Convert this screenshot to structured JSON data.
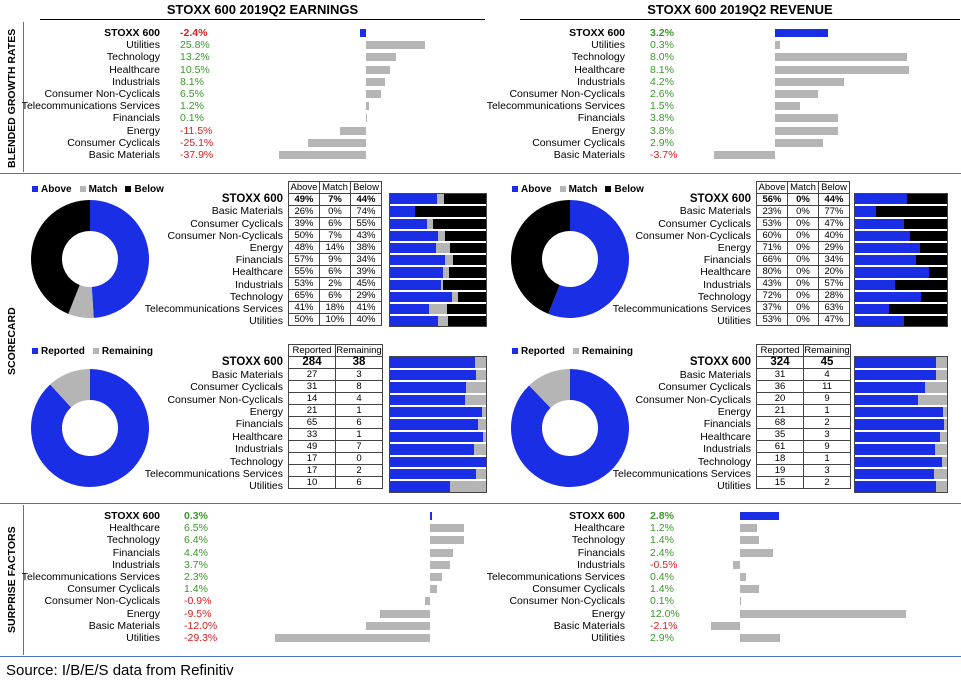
{
  "headers": {
    "earnings": "STOXX 600 2019Q2 EARNINGS",
    "revenue": "STOXX 600 2019Q2 REVENUE"
  },
  "section_labels": {
    "growth": "BLENDED GROWTH RATES",
    "scorecard": "SCORECARD",
    "surprise": "SURPRISE FACTORS"
  },
  "colors": {
    "blue": "#1a2ee6",
    "gray": "#b5b5b5",
    "black": "#000000",
    "pos": "#3a9a2a",
    "neg": "#d92020",
    "rule": "#4a6fd1"
  },
  "source": "Source: I/B/E/S data from Refinitiv",
  "chart_data": [
    {
      "type": "bar",
      "id": "earnings_growth",
      "title": "STOXX 600 2019Q2 EARNINGS",
      "categories": [
        "STOXX 600",
        "Utilities",
        "Technology",
        "Healthcare",
        "Industrials",
        "Consumer Non-Cyclicals",
        "Telecommunications Services",
        "Financials",
        "Energy",
        "Consumer Cyclicals",
        "Basic Materials"
      ],
      "labels": [
        "-2.4%",
        "25.8%",
        "13.2%",
        "10.5%",
        "8.1%",
        "6.5%",
        "1.2%",
        "0.1%",
        "-11.5%",
        "-25.1%",
        "-37.9%"
      ],
      "values": [
        -2.4,
        25.8,
        13.2,
        10.5,
        8.1,
        6.5,
        1.2,
        0.1,
        -11.5,
        -25.1,
        -37.9
      ]
    },
    {
      "type": "bar",
      "id": "revenue_growth",
      "title": "STOXX 600 2019Q2 REVENUE",
      "categories": [
        "STOXX 600",
        "Utilities",
        "Technology",
        "Healthcare",
        "Industrials",
        "Consumer Non-Cyclicals",
        "Telecommunications Services",
        "Financials",
        "Energy",
        "Consumer Cyclicals",
        "Basic Materials"
      ],
      "labels": [
        "3.2%",
        "0.3%",
        "8.0%",
        "8.1%",
        "4.2%",
        "2.6%",
        "1.5%",
        "3.8%",
        "3.8%",
        "2.9%",
        "-3.7%"
      ],
      "values": [
        3.2,
        0.3,
        8.0,
        8.1,
        4.2,
        2.6,
        1.5,
        3.8,
        3.8,
        2.9,
        -3.7
      ]
    },
    {
      "type": "table",
      "id": "earnings_scorecard",
      "legend": [
        "Above",
        "Match",
        "Below"
      ],
      "columns": [
        "Above",
        "Match",
        "Below"
      ],
      "pie": [
        49,
        7,
        44
      ],
      "categories": [
        "STOXX 600",
        "Basic Materials",
        "Consumer Cyclicals",
        "Consumer Non-Cyclicals",
        "Energy",
        "Financials",
        "Healthcare",
        "Industrials",
        "Technology",
        "Telecommunications Services",
        "Utilities"
      ],
      "rows": [
        [
          "49%",
          "7%",
          "44%"
        ],
        [
          "26%",
          "0%",
          "74%"
        ],
        [
          "39%",
          "6%",
          "55%"
        ],
        [
          "50%",
          "7%",
          "43%"
        ],
        [
          "48%",
          "14%",
          "38%"
        ],
        [
          "57%",
          "9%",
          "34%"
        ],
        [
          "55%",
          "6%",
          "39%"
        ],
        [
          "53%",
          "2%",
          "45%"
        ],
        [
          "65%",
          "6%",
          "29%"
        ],
        [
          "41%",
          "18%",
          "41%"
        ],
        [
          "50%",
          "10%",
          "40%"
        ]
      ],
      "values": [
        [
          49,
          7,
          44
        ],
        [
          26,
          0,
          74
        ],
        [
          39,
          6,
          55
        ],
        [
          50,
          7,
          43
        ],
        [
          48,
          14,
          38
        ],
        [
          57,
          9,
          34
        ],
        [
          55,
          6,
          39
        ],
        [
          53,
          2,
          45
        ],
        [
          65,
          6,
          29
        ],
        [
          41,
          18,
          41
        ],
        [
          50,
          10,
          40
        ]
      ]
    },
    {
      "type": "table",
      "id": "revenue_scorecard",
      "legend": [
        "Above",
        "Match",
        "Below"
      ],
      "columns": [
        "Above",
        "Match",
        "Below"
      ],
      "pie": [
        56,
        0,
        44
      ],
      "categories": [
        "STOXX 600",
        "Basic Materials",
        "Consumer Cyclicals",
        "Consumer Non-Cyclicals",
        "Energy",
        "Financials",
        "Healthcare",
        "Industrials",
        "Technology",
        "Telecommunications Services",
        "Utilities"
      ],
      "rows": [
        [
          "56%",
          "0%",
          "44%"
        ],
        [
          "23%",
          "0%",
          "77%"
        ],
        [
          "53%",
          "0%",
          "47%"
        ],
        [
          "60%",
          "0%",
          "40%"
        ],
        [
          "71%",
          "0%",
          "29%"
        ],
        [
          "66%",
          "0%",
          "34%"
        ],
        [
          "80%",
          "0%",
          "20%"
        ],
        [
          "43%",
          "0%",
          "57%"
        ],
        [
          "72%",
          "0%",
          "28%"
        ],
        [
          "37%",
          "0%",
          "63%"
        ],
        [
          "53%",
          "0%",
          "47%"
        ]
      ],
      "values": [
        [
          56,
          0,
          44
        ],
        [
          23,
          0,
          77
        ],
        [
          53,
          0,
          47
        ],
        [
          60,
          0,
          40
        ],
        [
          71,
          0,
          29
        ],
        [
          66,
          0,
          34
        ],
        [
          80,
          0,
          20
        ],
        [
          43,
          0,
          57
        ],
        [
          72,
          0,
          28
        ],
        [
          37,
          0,
          63
        ],
        [
          53,
          0,
          47
        ]
      ]
    },
    {
      "type": "table",
      "id": "earnings_reported",
      "legend": [
        "Reported",
        "Remaining"
      ],
      "columns": [
        "Reported",
        "Remaining"
      ],
      "pie": [
        284,
        38
      ],
      "categories": [
        "STOXX 600",
        "Basic Materials",
        "Consumer Cyclicals",
        "Consumer Non-Cyclicals",
        "Energy",
        "Financials",
        "Healthcare",
        "Industrials",
        "Technology",
        "Telecommunications Services",
        "Utilities"
      ],
      "rows": [
        [
          "284",
          "38"
        ],
        [
          "27",
          "3"
        ],
        [
          "31",
          "8"
        ],
        [
          "14",
          "4"
        ],
        [
          "21",
          "1"
        ],
        [
          "65",
          "6"
        ],
        [
          "33",
          "1"
        ],
        [
          "49",
          "7"
        ],
        [
          "17",
          "0"
        ],
        [
          "17",
          "2"
        ],
        [
          "10",
          "6"
        ]
      ],
      "values": [
        [
          284,
          38
        ],
        [
          27,
          3
        ],
        [
          31,
          8
        ],
        [
          14,
          4
        ],
        [
          21,
          1
        ],
        [
          65,
          6
        ],
        [
          33,
          1
        ],
        [
          49,
          7
        ],
        [
          17,
          0
        ],
        [
          17,
          2
        ],
        [
          10,
          6
        ]
      ]
    },
    {
      "type": "table",
      "id": "revenue_reported",
      "legend": [
        "Reported",
        "Remaining"
      ],
      "columns": [
        "Reported",
        "Remaining"
      ],
      "pie": [
        324,
        45
      ],
      "categories": [
        "STOXX 600",
        "Basic Materials",
        "Consumer Cyclicals",
        "Consumer Non-Cyclicals",
        "Energy",
        "Financials",
        "Healthcare",
        "Industrials",
        "Technology",
        "Telecommunications Services",
        "Utilities"
      ],
      "rows": [
        [
          "324",
          "45"
        ],
        [
          "31",
          "4"
        ],
        [
          "36",
          "11"
        ],
        [
          "20",
          "9"
        ],
        [
          "21",
          "1"
        ],
        [
          "68",
          "2"
        ],
        [
          "35",
          "3"
        ],
        [
          "61",
          "9"
        ],
        [
          "18",
          "1"
        ],
        [
          "19",
          "3"
        ],
        [
          "15",
          "2"
        ]
      ],
      "values": [
        [
          324,
          45
        ],
        [
          31,
          4
        ],
        [
          36,
          11
        ],
        [
          20,
          9
        ],
        [
          21,
          1
        ],
        [
          68,
          2
        ],
        [
          35,
          3
        ],
        [
          61,
          9
        ],
        [
          18,
          1
        ],
        [
          19,
          3
        ],
        [
          15,
          2
        ]
      ]
    },
    {
      "type": "bar",
      "id": "earnings_surprise",
      "categories": [
        "STOXX 600",
        "Healthcare",
        "Technology",
        "Financials",
        "Industrials",
        "Telecommunications Services",
        "Consumer Cyclicals",
        "Consumer Non-Cyclicals",
        "Energy",
        "Basic Materials",
        "Utilities"
      ],
      "labels": [
        "0.3%",
        "6.5%",
        "6.4%",
        "4.4%",
        "3.7%",
        "2.3%",
        "1.4%",
        "-0.9%",
        "-9.5%",
        "-12.0%",
        "-29.3%"
      ],
      "values": [
        0.3,
        6.5,
        6.4,
        4.4,
        3.7,
        2.3,
        1.4,
        -0.9,
        -9.5,
        -12.0,
        -29.3
      ]
    },
    {
      "type": "bar",
      "id": "revenue_surprise",
      "categories": [
        "STOXX 600",
        "Healthcare",
        "Technology",
        "Financials",
        "Industrials",
        "Telecommunications Services",
        "Consumer Cyclicals",
        "Consumer Non-Cyclicals",
        "Energy",
        "Basic Materials",
        "Utilities"
      ],
      "labels": [
        "2.8%",
        "1.2%",
        "1.4%",
        "2.4%",
        "-0.5%",
        "0.4%",
        "1.4%",
        "0.1%",
        "12.0%",
        "-2.1%",
        "2.9%"
      ],
      "values": [
        2.8,
        1.2,
        1.4,
        2.4,
        -0.5,
        0.4,
        1.4,
        0.1,
        12.0,
        -2.1,
        2.9
      ]
    }
  ]
}
